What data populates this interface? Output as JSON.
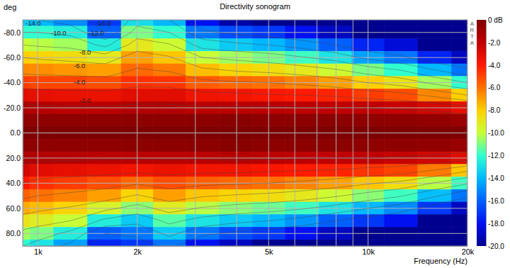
{
  "chart_data": {
    "type": "heatmap",
    "title": "Directivity sonogram",
    "x_label": "Frequency (Hz)",
    "y_label": "deg",
    "annotations": [
      "ARTA"
    ],
    "log": "x",
    "grid": true,
    "x": [
      900,
      1000,
      1250,
      1600,
      2000,
      2500,
      3150,
      4000,
      5000,
      6300,
      8000,
      10000,
      12500,
      16000,
      20000
    ],
    "y": [
      -90,
      -80,
      -70,
      -60,
      -50,
      -40,
      -30,
      -20,
      -10,
      0,
      10,
      20,
      30,
      40,
      50,
      60,
      70,
      80,
      90
    ],
    "z": [
      [
        -13.5,
        -14,
        -15,
        -17,
        -13,
        -14,
        -18,
        -19.5,
        -20,
        -20,
        -20,
        -20,
        -20,
        -20,
        -20
      ],
      [
        -12,
        -12,
        -12.5,
        -16,
        -11,
        -12,
        -15.5,
        -16.5,
        -17,
        -18,
        -19,
        -20,
        -20,
        -20,
        -20
      ],
      [
        -10,
        -10.2,
        -10.5,
        -12.5,
        -9,
        -9.8,
        -12.8,
        -13.5,
        -14,
        -14.8,
        -16,
        -17.5,
        -18.5,
        -20,
        -20
      ],
      [
        -8,
        -8.2,
        -8.5,
        -9,
        -7,
        -7.8,
        -10,
        -10.5,
        -11,
        -11.8,
        -12.8,
        -14.5,
        -15.5,
        -17.5,
        -19
      ],
      [
        -6.5,
        -6.6,
        -6.8,
        -7,
        -5.8,
        -6.2,
        -7.6,
        -8.2,
        -8.5,
        -9,
        -9.8,
        -11,
        -12,
        -14,
        -15.5
      ],
      [
        -4.8,
        -5,
        -5,
        -5.2,
        -4.5,
        -4.6,
        -5.5,
        -5.8,
        -6,
        -6.4,
        -7,
        -8,
        -8.8,
        -10.5,
        -12
      ],
      [
        -3,
        -3.2,
        -3.3,
        -3.4,
        -3,
        -3,
        -3.5,
        -3.6,
        -3.8,
        -4,
        -4.2,
        -4.8,
        -5.2,
        -6.5,
        -8
      ],
      [
        -1.5,
        -1.7,
        -1.8,
        -1.8,
        -1.6,
        -1.6,
        -1.8,
        -1.8,
        -1.8,
        -1.9,
        -2,
        -2,
        -2.2,
        -2.6,
        -3.2
      ],
      [
        -0.5,
        -0.5,
        -0.5,
        -0.5,
        -0.4,
        -0.4,
        -0.4,
        -0.3,
        -0.4,
        -0.4,
        -0.4,
        -0.5,
        -0.5,
        -0.6,
        -0.8
      ],
      [
        0,
        0,
        0,
        0,
        0,
        0,
        0,
        0,
        0,
        0,
        0,
        0,
        0,
        0,
        0
      ],
      [
        -0.5,
        -0.5,
        -0.5,
        -0.5,
        -0.4,
        -0.4,
        -0.4,
        -0.3,
        -0.4,
        -0.4,
        -0.4,
        -0.5,
        -0.5,
        -0.6,
        -0.8
      ],
      [
        -1.4,
        -1.6,
        -1.7,
        -1.8,
        -1.8,
        -1.8,
        -1.8,
        -1.7,
        -1.8,
        -1.9,
        -2,
        -2,
        -2.2,
        -2.5,
        -3
      ],
      [
        -2.6,
        -3,
        -3.2,
        -3.4,
        -3.6,
        -3.4,
        -3.6,
        -3.6,
        -3.8,
        -4,
        -4.2,
        -4.6,
        -5,
        -6.2,
        -7.8
      ],
      [
        -4,
        -4.5,
        -4.8,
        -5.2,
        -5.8,
        -5.2,
        -5.6,
        -5.8,
        -6,
        -6.4,
        -7,
        -7.8,
        -8.5,
        -10.2,
        -11.8
      ],
      [
        -5.6,
        -6,
        -6.4,
        -7,
        -8.2,
        -7,
        -7.8,
        -8.2,
        -8.5,
        -9,
        -9.8,
        -10.8,
        -11.8,
        -13.8,
        -15.5
      ],
      [
        -7.2,
        -7.6,
        -8.2,
        -9.5,
        -10.8,
        -9.2,
        -10.2,
        -10.8,
        -11.2,
        -11.8,
        -12.8,
        -14,
        -15,
        -17,
        -19
      ],
      [
        -8.8,
        -9.2,
        -10,
        -12.5,
        -13.5,
        -11.5,
        -12.8,
        -13.5,
        -14,
        -14.8,
        -16,
        -17,
        -18,
        -20,
        -20
      ],
      [
        -10.5,
        -11,
        -12.5,
        -16,
        -15.5,
        -13.5,
        -15.5,
        -16.5,
        -17,
        -18,
        -19,
        -20,
        -20,
        -20,
        -20
      ],
      [
        -12,
        -12.8,
        -14.5,
        -17.5,
        -17,
        -15.5,
        -18,
        -19,
        -20,
        -20,
        -20,
        -20,
        -20,
        -20,
        -20
      ]
    ],
    "xlim": [
      900,
      20000
    ],
    "xticks": [
      {
        "value": 1000,
        "label": "1k"
      },
      {
        "value": 2000,
        "label": "2k"
      },
      {
        "value": 5000,
        "label": "5k"
      },
      {
        "value": 10000,
        "label": "10k"
      },
      {
        "value": 20000,
        "label": "20k"
      }
    ],
    "x_minor_ticks": [
      3000,
      4000,
      6000,
      7000,
      8000,
      9000
    ],
    "ylim": [
      -90,
      90
    ],
    "yticks": [
      {
        "value": -80,
        "label": "-80.0"
      },
      {
        "value": -60,
        "label": "-60.0"
      },
      {
        "value": -40,
        "label": "-40.0"
      },
      {
        "value": -20,
        "label": "-20.0"
      },
      {
        "value": 0,
        "label": "0.0"
      },
      {
        "value": 20,
        "label": "20.0"
      },
      {
        "value": 40,
        "label": "40.0"
      },
      {
        "value": 60,
        "label": "60.0"
      },
      {
        "value": 80,
        "label": "80.0"
      }
    ],
    "colorbar": {
      "range": [
        -20,
        0
      ],
      "ticks": [
        {
          "value": 0,
          "label": "0 dB"
        },
        {
          "value": -2,
          "label": "-2.0"
        },
        {
          "value": -4,
          "label": "-4.0"
        },
        {
          "value": -6,
          "label": "-6.0"
        },
        {
          "value": -8,
          "label": "-8.0"
        },
        {
          "value": -10,
          "label": "-10.0"
        },
        {
          "value": -12,
          "label": "-12.0"
        },
        {
          "value": -14,
          "label": "-14.0"
        },
        {
          "value": -16,
          "label": "-16.0"
        },
        {
          "value": -18,
          "label": "-18.0"
        },
        {
          "value": -20,
          "label": "-20.0"
        }
      ]
    },
    "contours": [
      {
        "value": -2,
        "label": "-2.0"
      },
      {
        "value": -4,
        "label": "-4.0"
      },
      {
        "value": -6,
        "label": "-6.0"
      },
      {
        "value": -8,
        "label": "-8.0"
      },
      {
        "value": -10,
        "label": "-10.0"
      },
      {
        "value": -12,
        "label": "-12.0"
      },
      {
        "value": -14,
        "label": "-14.0"
      },
      {
        "value": -16,
        "label": "-16.0"
      }
    ]
  }
}
